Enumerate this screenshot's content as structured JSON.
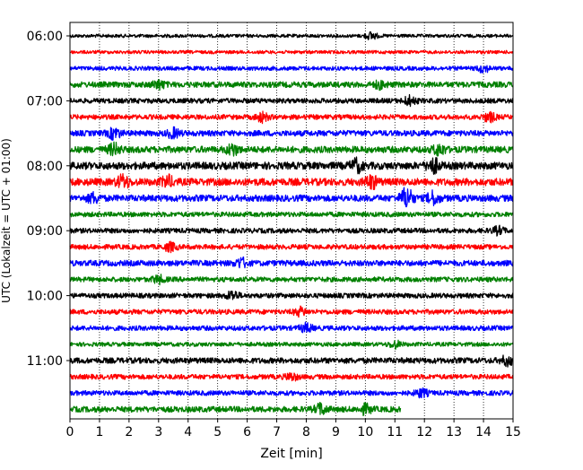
{
  "chart_data": {
    "type": "line",
    "title": "",
    "xlabel": "Zeit  [min]",
    "ylabel": "UTC (Lokalzeit = UTC + 01:00)",
    "xlim": [
      0,
      15
    ],
    "x_ticks": [
      0,
      1,
      2,
      3,
      4,
      5,
      6,
      7,
      8,
      9,
      10,
      11,
      12,
      13,
      14,
      15
    ],
    "y_tick_labels": [
      "06:00",
      "07:00",
      "08:00",
      "09:00",
      "10:00",
      "11:00"
    ],
    "y_tick_traces": [
      0,
      4,
      8,
      12,
      16,
      20
    ],
    "grid": "vertical dotted",
    "series_colors": [
      "#000000",
      "#ff0000",
      "#0000ff",
      "#008000"
    ],
    "trace_start_time": "06:00",
    "trace_duration_min": 15,
    "traces": [
      {
        "start": "06:00",
        "color": "#000000",
        "amplitude": 0.2,
        "end_min": 15,
        "events": [
          {
            "t": 10.2,
            "amp": 0.4
          }
        ]
      },
      {
        "start": "06:15",
        "color": "#ff0000",
        "amplitude": 0.2,
        "end_min": 15,
        "events": []
      },
      {
        "start": "06:30",
        "color": "#0000ff",
        "amplitude": 0.25,
        "end_min": 15,
        "events": [
          {
            "t": 14.0,
            "amp": 0.4
          }
        ]
      },
      {
        "start": "06:45",
        "color": "#008000",
        "amplitude": 0.35,
        "end_min": 15,
        "events": [
          {
            "t": 3.0,
            "amp": 0.45
          },
          {
            "t": 10.5,
            "amp": 0.4
          }
        ]
      },
      {
        "start": "07:00",
        "color": "#000000",
        "amplitude": 0.3,
        "end_min": 15,
        "events": [
          {
            "t": 11.5,
            "amp": 0.5
          }
        ]
      },
      {
        "start": "07:15",
        "color": "#ff0000",
        "amplitude": 0.3,
        "end_min": 15,
        "events": [
          {
            "t": 6.5,
            "amp": 0.5
          },
          {
            "t": 14.2,
            "amp": 0.5
          }
        ]
      },
      {
        "start": "07:30",
        "color": "#0000ff",
        "amplitude": 0.35,
        "end_min": 15,
        "events": [
          {
            "t": 1.5,
            "amp": 0.6
          },
          {
            "t": 3.5,
            "amp": 0.5
          }
        ]
      },
      {
        "start": "07:45",
        "color": "#008000",
        "amplitude": 0.4,
        "end_min": 15,
        "events": [
          {
            "t": 1.5,
            "amp": 0.6
          },
          {
            "t": 5.5,
            "amp": 0.6
          },
          {
            "t": 12.5,
            "amp": 0.6
          }
        ]
      },
      {
        "start": "08:00",
        "color": "#000000",
        "amplitude": 0.45,
        "end_min": 15,
        "events": [
          {
            "t": 9.7,
            "amp": 0.7
          },
          {
            "t": 12.3,
            "amp": 0.8
          }
        ]
      },
      {
        "start": "08:15",
        "color": "#ff0000",
        "amplitude": 0.45,
        "end_min": 15,
        "events": [
          {
            "t": 1.8,
            "amp": 0.7
          },
          {
            "t": 3.3,
            "amp": 0.6
          },
          {
            "t": 10.2,
            "amp": 0.7
          }
        ]
      },
      {
        "start": "08:30",
        "color": "#0000ff",
        "amplitude": 0.4,
        "end_min": 15,
        "events": [
          {
            "t": 0.8,
            "amp": 0.5
          },
          {
            "t": 11.4,
            "amp": 1.2
          },
          {
            "t": 12.3,
            "amp": 0.7
          }
        ]
      },
      {
        "start": "08:45",
        "color": "#008000",
        "amplitude": 0.3,
        "end_min": 15,
        "events": []
      },
      {
        "start": "09:00",
        "color": "#000000",
        "amplitude": 0.3,
        "end_min": 15,
        "events": [
          {
            "t": 14.5,
            "amp": 0.4
          }
        ]
      },
      {
        "start": "09:15",
        "color": "#ff0000",
        "amplitude": 0.3,
        "end_min": 15,
        "events": [
          {
            "t": 3.4,
            "amp": 0.45
          }
        ]
      },
      {
        "start": "09:30",
        "color": "#0000ff",
        "amplitude": 0.35,
        "end_min": 15,
        "events": [
          {
            "t": 5.8,
            "amp": 0.5
          }
        ]
      },
      {
        "start": "09:45",
        "color": "#008000",
        "amplitude": 0.3,
        "end_min": 15,
        "events": [
          {
            "t": 3.0,
            "amp": 0.4
          }
        ]
      },
      {
        "start": "10:00",
        "color": "#000000",
        "amplitude": 0.3,
        "end_min": 15,
        "events": [
          {
            "t": 5.5,
            "amp": 0.5
          }
        ]
      },
      {
        "start": "10:15",
        "color": "#ff0000",
        "amplitude": 0.3,
        "end_min": 15,
        "events": [
          {
            "t": 7.8,
            "amp": 0.45
          }
        ]
      },
      {
        "start": "10:30",
        "color": "#0000ff",
        "amplitude": 0.3,
        "end_min": 15,
        "events": [
          {
            "t": 8.0,
            "amp": 0.45
          }
        ]
      },
      {
        "start": "10:45",
        "color": "#008000",
        "amplitude": 0.25,
        "end_min": 15,
        "events": [
          {
            "t": 11.0,
            "amp": 0.4
          }
        ]
      },
      {
        "start": "11:00",
        "color": "#000000",
        "amplitude": 0.35,
        "end_min": 15,
        "events": [
          {
            "t": 14.8,
            "amp": 0.5
          }
        ]
      },
      {
        "start": "11:15",
        "color": "#ff0000",
        "amplitude": 0.3,
        "end_min": 15,
        "events": [
          {
            "t": 7.5,
            "amp": 0.4
          }
        ]
      },
      {
        "start": "11:30",
        "color": "#0000ff",
        "amplitude": 0.3,
        "end_min": 15,
        "events": [
          {
            "t": 11.9,
            "amp": 0.45
          }
        ]
      },
      {
        "start": "11:45",
        "color": "#008000",
        "amplitude": 0.35,
        "end_min": 11.2,
        "events": [
          {
            "t": 8.5,
            "amp": 0.6
          },
          {
            "t": 10.0,
            "amp": 0.5
          }
        ]
      }
    ]
  }
}
